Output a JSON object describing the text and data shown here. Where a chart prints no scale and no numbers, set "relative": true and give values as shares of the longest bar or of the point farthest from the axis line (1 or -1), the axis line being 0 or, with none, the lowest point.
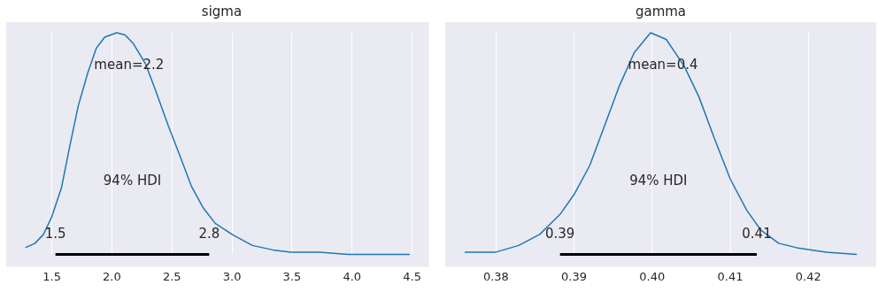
{
  "chart_data": [
    {
      "type": "line",
      "title": "sigma",
      "relative": true,
      "grid": "x",
      "tick_labels": "x",
      "marker": "none",
      "line_style": "solid",
      "xlim": [
        1.12,
        4.64
      ],
      "xticks": [
        {
          "value": 1.5,
          "label": "1.5"
        },
        {
          "value": 2,
          "label": "2.0"
        },
        {
          "value": 2.5,
          "label": "2.5"
        },
        {
          "value": 3,
          "label": "3.0"
        },
        {
          "value": 3.5,
          "label": "3.5"
        },
        {
          "value": 4,
          "label": "4.0"
        },
        {
          "value": 4.5,
          "label": "4.5"
        }
      ],
      "series": [
        {
          "color": "#1f77b4",
          "x": [
            1.28,
            1.36,
            1.43,
            1.5,
            1.58,
            1.65,
            1.72,
            1.8,
            1.87,
            1.94,
            2.04,
            2.11,
            2.18,
            2.28,
            2.37,
            2.47,
            2.57,
            2.66,
            2.76,
            2.86,
            3.0,
            3.17,
            3.34,
            3.49,
            3.73,
            3.97,
            4.48
          ],
          "values": [
            0.03,
            0.05,
            0.09,
            0.17,
            0.3,
            0.49,
            0.67,
            0.82,
            0.93,
            0.98,
            1,
            0.99,
            0.95,
            0.86,
            0.73,
            0.58,
            0.44,
            0.31,
            0.21,
            0.14,
            0.09,
            0.04,
            0.02,
            0.01,
            0.01,
            0.0,
            0
          ]
        },
        {
          "name": "94% HDI",
          "color": "#000000",
          "x": [
            1.53,
            2.81
          ],
          "values": [
            0,
            0
          ]
        }
      ],
      "annotations": [
        "mean=2.2",
        {
          "text": "1.5",
          "x": 1.53,
          "y": 0
        },
        {
          "text": "2.8",
          "x": 2.81,
          "y": 0
        }
      ]
    },
    {
      "type": "line",
      "title": "gamma",
      "relative": true,
      "grid": "x",
      "tick_labels": "x",
      "marker": "none",
      "line_style": "solid",
      "xlim": [
        0.3735,
        0.4287
      ],
      "xticks": [
        {
          "value": 0.38,
          "label": "0.38"
        },
        {
          "value": 0.39,
          "label": "0.39"
        },
        {
          "value": 0.4,
          "label": "0.40"
        },
        {
          "value": 0.41,
          "label": "0.41"
        },
        {
          "value": 0.42,
          "label": "0.42"
        }
      ],
      "series": [
        {
          "color": "#1f77b4",
          "x": [
            0.376,
            0.38,
            0.3829,
            0.3856,
            0.3882,
            0.39,
            0.392,
            0.3939,
            0.3958,
            0.3977,
            0.3998,
            0.4018,
            0.4041,
            0.406,
            0.4079,
            0.41,
            0.4121,
            0.4139,
            0.4162,
            0.4185,
            0.4223,
            0.4262
          ],
          "values": [
            0.01,
            0.01,
            0.04,
            0.09,
            0.18,
            0.27,
            0.4,
            0.58,
            0.76,
            0.91,
            1,
            0.97,
            0.85,
            0.71,
            0.53,
            0.34,
            0.2,
            0.11,
            0.05,
            0.03,
            0.01,
            0
          ]
        },
        {
          "name": "94% HDI",
          "color": "#000000",
          "x": [
            0.3882,
            0.4134
          ],
          "values": [
            0,
            0
          ]
        }
      ],
      "annotations": [
        "mean=0.4",
        {
          "text": "0.39",
          "x": 0.3882,
          "y": 0
        },
        {
          "text": "0.41",
          "x": 0.4134,
          "y": 0
        }
      ]
    }
  ]
}
